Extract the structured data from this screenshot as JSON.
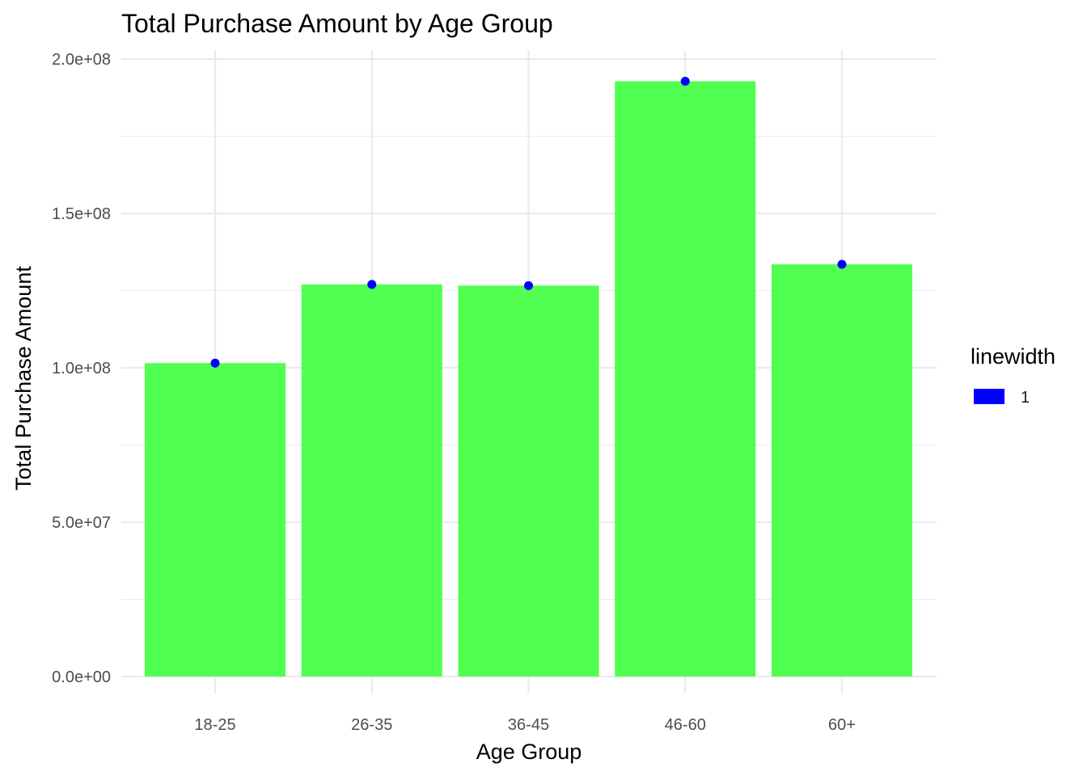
{
  "chart_data": {
    "type": "bar",
    "title": "Total Purchase Amount by Age Group",
    "xlabel": "Age Group",
    "ylabel": "Total Purchase Amount",
    "categories": [
      "18-25",
      "26-35",
      "36-45",
      "46-60",
      "60+"
    ],
    "values": [
      101500000,
      127000000,
      126600000,
      192800000,
      133500000
    ],
    "ylim": [
      0,
      200000000
    ],
    "yticks": [
      0,
      50000000,
      100000000,
      150000000,
      200000000
    ],
    "ytick_labels": [
      "0.0e+00",
      "5.0e+07",
      "1.0e+08",
      "1.5e+08",
      "2.0e+08"
    ],
    "grid": true,
    "bar_color": "#4dff4d",
    "point_color": "#0000ff",
    "legend": {
      "title": "linewidth",
      "placement": "right",
      "items": [
        {
          "label": "1",
          "color": "#0000ff"
        }
      ]
    }
  }
}
